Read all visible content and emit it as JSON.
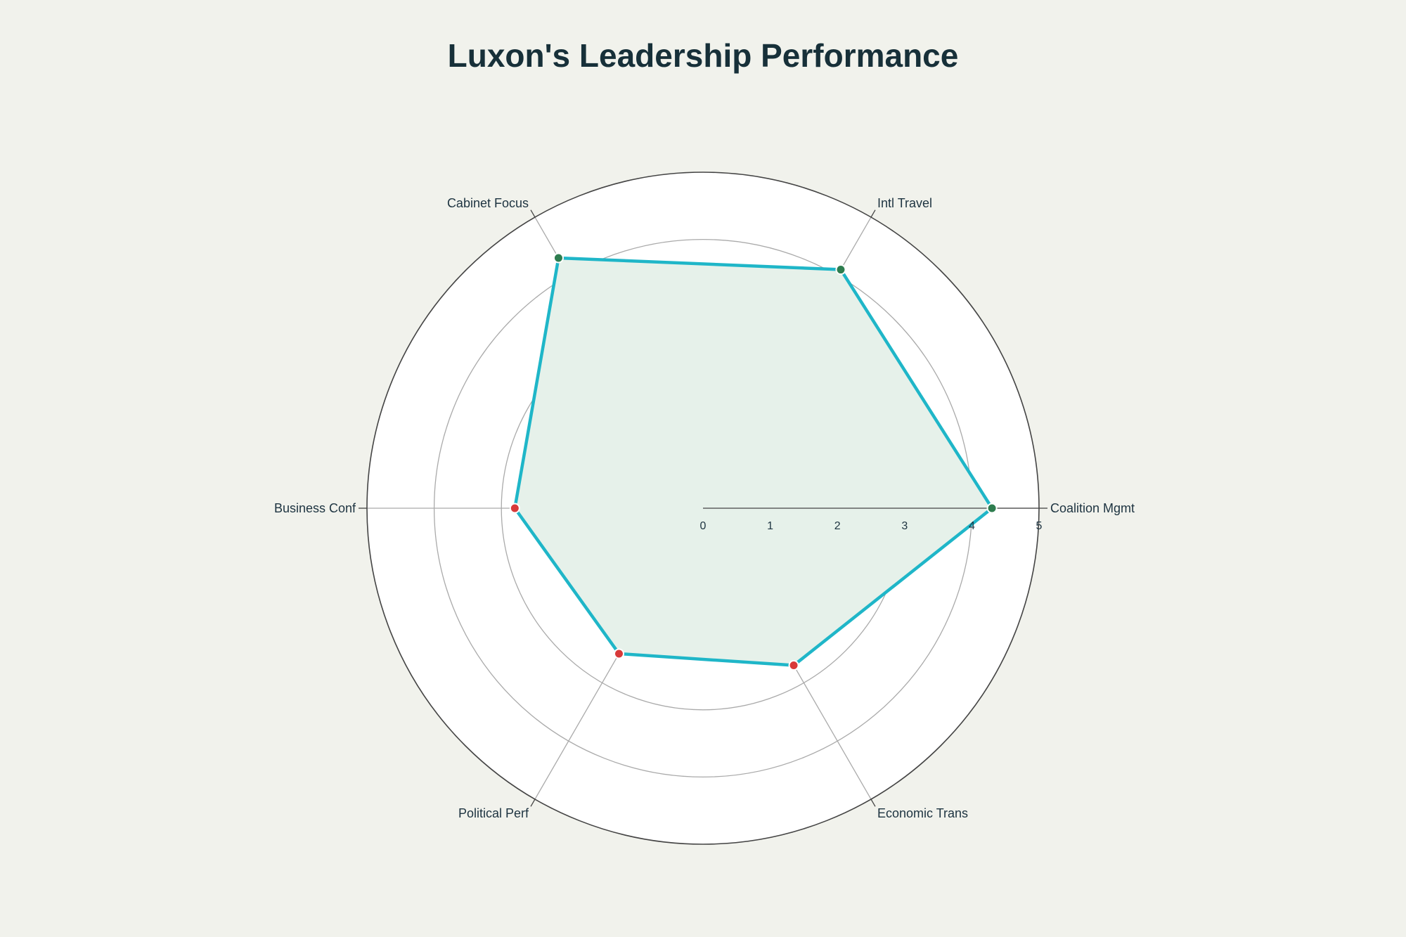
{
  "chart_data": {
    "type": "radar",
    "title": "Luxon's Leadership Performance",
    "axes": [
      "Coalition Mgmt",
      "Intl Travel",
      "Cabinet Focus",
      "Business Conf",
      "Political Perf",
      "Economic Trans"
    ],
    "series": [
      {
        "values": [
          4.3,
          4.1,
          4.3,
          2.8,
          2.5,
          2.7
        ],
        "marker_colors": [
          "#2e7d4f",
          "#2e7d4f",
          "#2e7d4f",
          "#d83a3a",
          "#d83a3a",
          "#d83a3a"
        ]
      }
    ],
    "radial_range": [
      0,
      5
    ],
    "radial_ticks": [
      "0",
      "1",
      "2",
      "3",
      "4",
      "5"
    ],
    "grid": true,
    "colors": {
      "line": "#1fb6c8",
      "fill": "#e6f1ea",
      "plot_background": "#ffffff",
      "page_background": "#f1f2ec",
      "grid": "#aaaaaa",
      "outline": "#444444",
      "text": "#173039"
    }
  }
}
